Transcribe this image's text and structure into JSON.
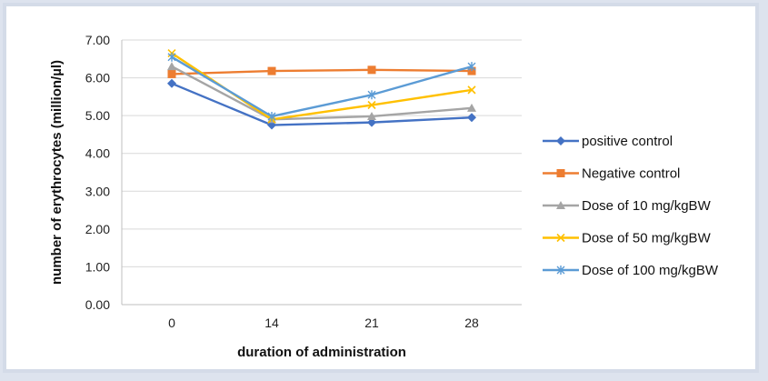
{
  "chart_data": {
    "type": "line",
    "categories": [
      "0",
      "14",
      "21",
      "28"
    ],
    "xlabel": "duration of administration",
    "ylabel": "number of erythrocytes (million/µl)",
    "ylim": [
      0,
      7
    ],
    "yticks": [
      "0.00",
      "1.00",
      "2.00",
      "3.00",
      "4.00",
      "5.00",
      "6.00",
      "7.00"
    ],
    "grid": true,
    "legend_position": "right",
    "series": [
      {
        "name": "positive control",
        "values": [
          5.85,
          4.75,
          4.82,
          4.95
        ],
        "color": "#4472c4",
        "marker": "diamond"
      },
      {
        "name": "Negative control",
        "values": [
          6.1,
          6.18,
          6.21,
          6.18
        ],
        "color": "#ed7d31",
        "marker": "square"
      },
      {
        "name": "Dose of 10 mg/kgBW",
        "values": [
          6.3,
          4.9,
          4.98,
          5.2
        ],
        "color": "#a5a5a5",
        "marker": "triangle"
      },
      {
        "name": "Dose of 50 mg/kgBW",
        "values": [
          6.65,
          4.9,
          5.28,
          5.68
        ],
        "color": "#ffc000",
        "marker": "x"
      },
      {
        "name": "Dose of 100 mg/kgBW",
        "values": [
          6.55,
          4.98,
          5.55,
          6.3
        ],
        "color": "#5b9bd5",
        "marker": "star"
      }
    ]
  }
}
